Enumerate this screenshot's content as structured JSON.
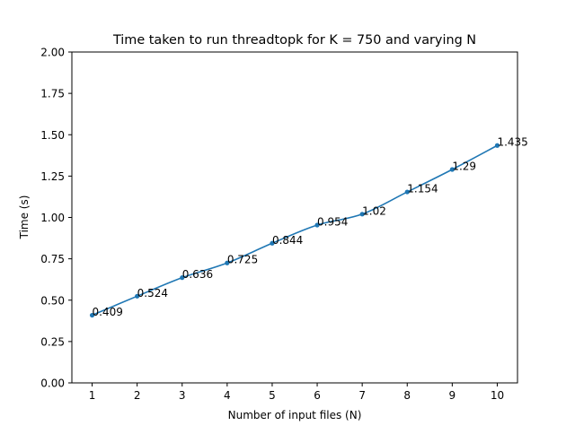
{
  "chart_data": {
    "type": "line",
    "title": "Time taken to run threadtopk for K = 750 and varying N",
    "xlabel": "Number of input files (N)",
    "ylabel": "Time (s)",
    "x": [
      1,
      2,
      3,
      4,
      5,
      6,
      7,
      8,
      9,
      10
    ],
    "series": [
      {
        "values": [
          0.409,
          0.524,
          0.636,
          0.725,
          0.844,
          0.954,
          1.02,
          1.154,
          1.29,
          1.435
        ],
        "labels": [
          "0.409",
          "0.524",
          "0.636",
          "0.725",
          "0.844",
          "0.954",
          "1.02",
          "1.154",
          "1.29",
          "1.435"
        ],
        "color": "#1f77b4"
      }
    ],
    "xticks": [
      1,
      2,
      3,
      4,
      5,
      6,
      7,
      8,
      9,
      10
    ],
    "xtick_labels": [
      "1",
      "2",
      "3",
      "4",
      "5",
      "6",
      "7",
      "8",
      "9",
      "10"
    ],
    "yticks": [
      0.0,
      0.25,
      0.5,
      0.75,
      1.0,
      1.25,
      1.5,
      1.75,
      2.0
    ],
    "ytick_labels": [
      "0.00",
      "0.25",
      "0.50",
      "0.75",
      "1.00",
      "1.25",
      "1.50",
      "1.75",
      "2.00"
    ],
    "xlim": [
      0.55,
      10.45
    ],
    "ylim": [
      0,
      2
    ],
    "grid": false,
    "legend": "none",
    "smooth": true,
    "markers": "dot"
  }
}
